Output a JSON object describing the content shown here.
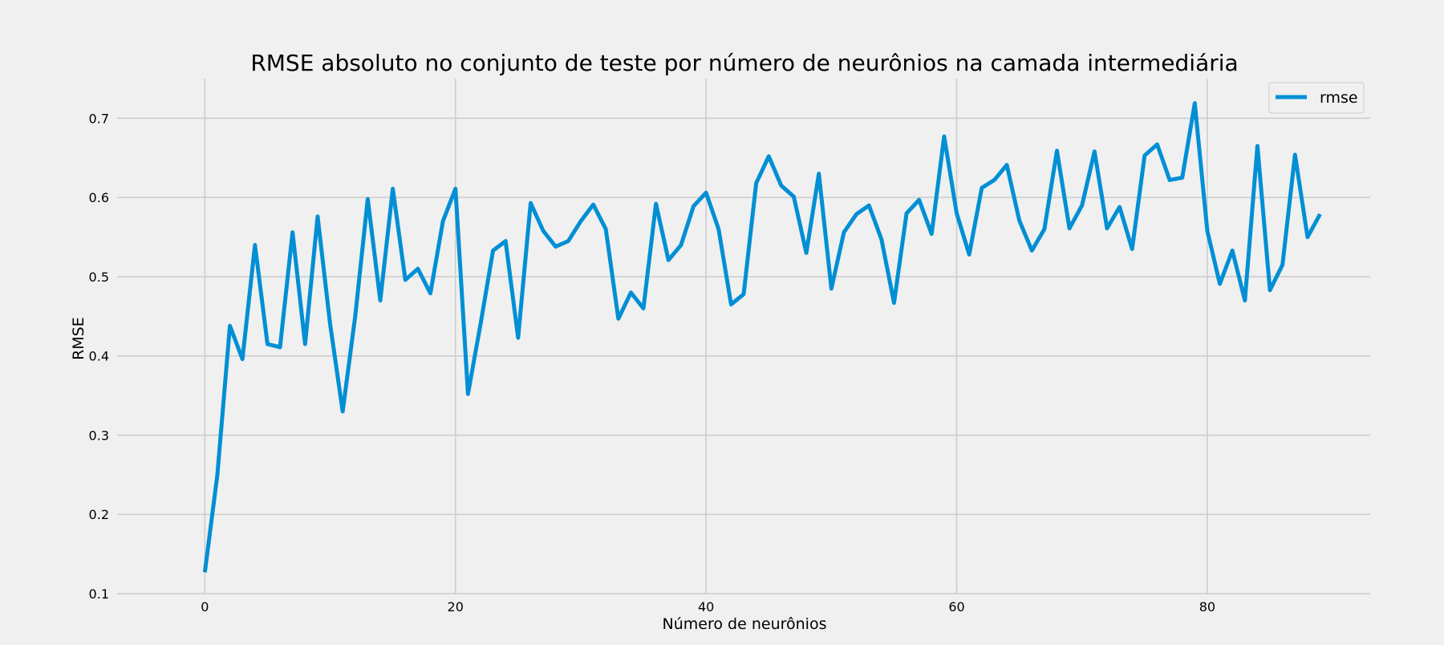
{
  "chart_data": {
    "type": "line",
    "title": "RMSE absoluto no conjunto de teste por número de neurônios na camada intermediária",
    "xlabel": "Número de neurônios",
    "ylabel": "RMSE",
    "xlim": [
      -7,
      93
    ],
    "ylim": [
      0.1,
      0.75
    ],
    "xticks": [
      0,
      20,
      40,
      60,
      80
    ],
    "yticks": [
      0.1,
      0.2,
      0.3,
      0.4,
      0.5,
      0.6,
      0.7
    ],
    "grid": true,
    "legend_position": "top-right",
    "colors": {
      "series": "#008fd5",
      "background": "#f0f0f0",
      "grid": "#cbcbcb"
    },
    "series": [
      {
        "name": "rmse",
        "x": [
          0,
          1,
          2,
          3,
          4,
          5,
          6,
          7,
          8,
          9,
          10,
          11,
          12,
          13,
          14,
          15,
          16,
          17,
          18,
          19,
          20,
          21,
          22,
          23,
          24,
          25,
          26,
          27,
          28,
          29,
          30,
          31,
          32,
          33,
          34,
          35,
          36,
          37,
          38,
          39,
          40,
          41,
          42,
          43,
          44,
          45,
          46,
          47,
          48,
          49,
          50,
          51,
          52,
          53,
          54,
          55,
          56,
          57,
          58,
          59,
          60,
          61,
          62,
          63,
          64,
          65,
          66,
          67,
          68,
          69,
          70,
          71,
          72,
          73,
          74,
          75,
          76,
          77,
          78,
          79,
          80,
          81,
          82,
          83,
          84,
          85,
          86,
          87,
          88,
          89
        ],
        "values": [
          0.127,
          0.25,
          0.438,
          0.396,
          0.54,
          0.415,
          0.411,
          0.556,
          0.415,
          0.576,
          0.44,
          0.33,
          0.45,
          0.598,
          0.47,
          0.611,
          0.496,
          0.51,
          0.479,
          0.57,
          0.611,
          0.352,
          0.44,
          0.533,
          0.545,
          0.423,
          0.593,
          0.558,
          0.538,
          0.545,
          0.57,
          0.591,
          0.56,
          0.447,
          0.48,
          0.46,
          0.592,
          0.521,
          0.54,
          0.589,
          0.606,
          0.56,
          0.465,
          0.478,
          0.618,
          0.652,
          0.615,
          0.601,
          0.53,
          0.63,
          0.485,
          0.556,
          0.579,
          0.59,
          0.547,
          0.467,
          0.58,
          0.597,
          0.554,
          0.677,
          0.58,
          0.528,
          0.612,
          0.622,
          0.641,
          0.571,
          0.533,
          0.56,
          0.659,
          0.561,
          0.59,
          0.658,
          0.561,
          0.588,
          0.535,
          0.653,
          0.667,
          0.622,
          0.625,
          0.719,
          0.558,
          0.491,
          0.533,
          0.47,
          0.665,
          0.483,
          0.515,
          0.654,
          0.55,
          0.579
        ]
      }
    ]
  }
}
